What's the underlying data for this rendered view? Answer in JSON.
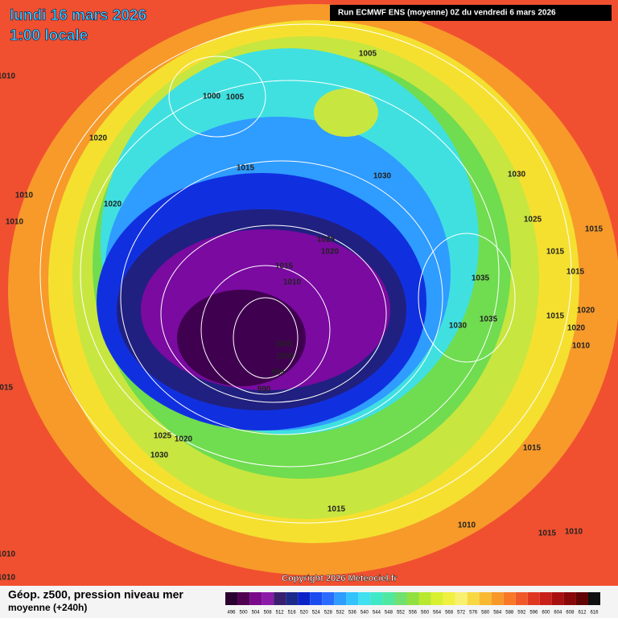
{
  "header": {
    "date": "lundi 16 mars 2026",
    "time": "1:00 locale",
    "run": "Run ECMWF ENS (moyenne) 0Z du vendredi 6 mars 2026"
  },
  "footer": {
    "title": "Géop. z500, pression niveau mer",
    "subtitle": "moyenne  (+240h)",
    "copyright": "Copyright 2026 Meteociel.fr"
  },
  "legend": {
    "values": [
      496,
      500,
      504,
      508,
      512,
      516,
      520,
      524,
      528,
      532,
      536,
      540,
      544,
      548,
      552,
      556,
      560,
      564,
      568,
      572,
      576,
      580,
      584,
      588,
      592,
      596,
      600,
      604,
      608,
      612,
      616
    ],
    "colors": [
      "#2a0030",
      "#50004f",
      "#7a0a8a",
      "#8c1aa8",
      "#3a1f6e",
      "#1c2a8a",
      "#0a22c8",
      "#1a4cf0",
      "#2a6cff",
      "#2f9cff",
      "#34c2ff",
      "#40e0f0",
      "#40e8c8",
      "#50e8a0",
      "#70e070",
      "#90e040",
      "#b8e830",
      "#d8f030",
      "#f0f040",
      "#f8f070",
      "#f8d840",
      "#f8b830",
      "#f89828",
      "#f87828",
      "#f05828",
      "#e03820",
      "#c82018",
      "#a81010",
      "#880808",
      "#600404",
      "#101010"
    ]
  },
  "map": {
    "isobar_labels": [
      1005,
      1000,
      1005,
      1020,
      1015,
      1010,
      1020,
      1010,
      1030,
      1030,
      1025,
      1015,
      1015,
      1015,
      1025,
      1020,
      1015,
      1010,
      1035,
      1035,
      1030,
      1015,
      1020,
      1020,
      1010,
      1005,
      1000,
      995,
      990,
      1015,
      1025,
      1020,
      1030,
      1015,
      1015,
      1010,
      1015,
      1010,
      1010,
      1010,
      1010
    ]
  }
}
